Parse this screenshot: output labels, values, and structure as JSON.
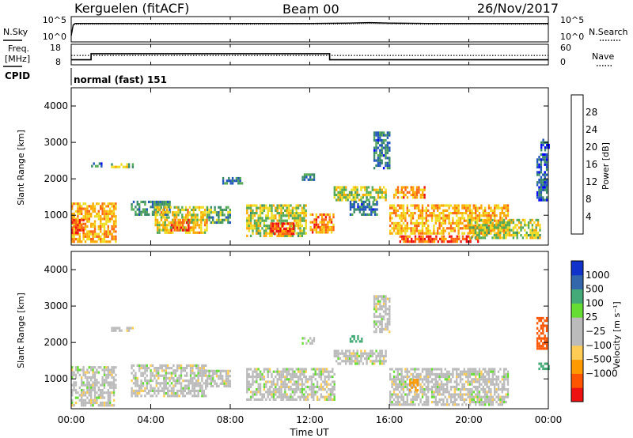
{
  "header": {
    "station": "Kerguelen (fitACF)",
    "beam": "Beam 00",
    "date": "26/Nov/2017"
  },
  "noise_panel": {
    "left_label": "N.Sky",
    "right_label": "N.Search",
    "left_ticks": [
      "10^5",
      "10^0"
    ],
    "right_ticks": [
      "10^5",
      "10^0"
    ]
  },
  "freq_panel": {
    "left_label_line1": "Freq.",
    "left_label_line2": "[MHz]",
    "right_label": "Nave",
    "left_ticks": [
      "18",
      "8"
    ],
    "right_ticks": [
      "60",
      "0"
    ]
  },
  "cpid_panel": {
    "label": "CPID",
    "program": "normal (fast) 151"
  },
  "power_panel": {
    "ylabel": "Slant Range [km]",
    "yticks": [
      "4000",
      "3000",
      "2000",
      "1000"
    ],
    "colorbar_title": "Power [dB]",
    "colorbar_ticks": [
      "28",
      "24",
      "20",
      "16",
      "12",
      "8",
      "4"
    ]
  },
  "velocity_panel": {
    "ylabel": "Slant Range [km]",
    "yticks": [
      "4000",
      "3000",
      "2000",
      "1000"
    ],
    "colorbar_title": "Velocity [m s⁻¹]",
    "colorbar_ticks": [
      "1000",
      "500",
      "100",
      "25",
      "−25",
      "−100",
      "−500",
      "−1000"
    ]
  },
  "time_axis": {
    "title": "Time UT",
    "ticks": [
      "00:00",
      "04:00",
      "08:00",
      "12:00",
      "16:00",
      "20:00",
      "00:00"
    ]
  },
  "colors": {
    "power_scale": [
      "#0000ff",
      "#2255bb",
      "#3a8a6a",
      "#55aa55",
      "#eedd22",
      "#ffaa00",
      "#ff6611",
      "#ee1111"
    ],
    "velocity_scale": [
      "#ee1111",
      "#ff5500",
      "#ff9900",
      "#ffcc55",
      "#bbbbbb",
      "#bbbbbb",
      "#66dd33",
      "#44aa77",
      "#3366aa",
      "#1133cc"
    ],
    "gray": "#bbbbbb"
  },
  "chart_data": [
    {
      "type": "line",
      "panel": "noise",
      "x": [
        0,
        0.1,
        0.2,
        1,
        2,
        4,
        6,
        8,
        10,
        12,
        14,
        15,
        16,
        18,
        20,
        22,
        24
      ],
      "series": [
        {
          "name": "N.Sky",
          "values": [
            1,
            3.5,
            3.8,
            3.8,
            3.8,
            3.8,
            3.8,
            3.8,
            3.8,
            3.8,
            3.9,
            4.0,
            3.9,
            3.8,
            3.8,
            3.8,
            3.8
          ]
        },
        {
          "name": "N.Search",
          "values": [
            1,
            3.4,
            3.6,
            3.6,
            3.6,
            3.6,
            3.6,
            3.6,
            3.6,
            3.6,
            3.7,
            3.8,
            3.7,
            3.6,
            3.6,
            3.6,
            3.6
          ]
        }
      ],
      "ylim": [
        0,
        5
      ],
      "xlim": [
        0,
        24
      ]
    },
    {
      "type": "line",
      "panel": "frequency",
      "x": [
        0,
        1,
        1,
        13,
        13,
        24
      ],
      "series": [
        {
          "name": "Freq.",
          "values": [
            10,
            10,
            13.5,
            13.5,
            10,
            10
          ]
        },
        {
          "name": "Nave",
          "values": [
            27,
            27,
            27,
            27,
            27,
            27
          ]
        }
      ],
      "ylim": [
        8,
        18
      ],
      "xlim": [
        0,
        24
      ]
    },
    {
      "type": "heatmap",
      "panel": "power",
      "ylabel": "Slant Range [km]",
      "xlabel": "Time UT",
      "xlim": [
        0,
        24
      ],
      "ylim": [
        180,
        4500
      ],
      "colorbar_range": [
        0,
        30
      ],
      "regions": [
        {
          "t0": 0.0,
          "t1": 2.2,
          "r0": 300,
          "r1": 1350,
          "level": 20
        },
        {
          "t0": 0.0,
          "t1": 0.6,
          "r0": 500,
          "r1": 900,
          "level": 27
        },
        {
          "t0": 1.0,
          "t1": 1.6,
          "r0": 2350,
          "r1": 2450,
          "level": 8
        },
        {
          "t0": 2.0,
          "t1": 3.2,
          "r0": 2300,
          "r1": 2430,
          "level": 15
        },
        {
          "t0": 3.0,
          "t1": 5.0,
          "r0": 1000,
          "r1": 1400,
          "level": 10
        },
        {
          "t0": 4.2,
          "t1": 6.8,
          "r0": 500,
          "r1": 1250,
          "level": 18
        },
        {
          "t0": 5.0,
          "t1": 6.0,
          "r0": 600,
          "r1": 900,
          "level": 26
        },
        {
          "t0": 6.8,
          "t1": 8.0,
          "r0": 800,
          "r1": 1250,
          "level": 12
        },
        {
          "t0": 7.6,
          "t1": 8.6,
          "r0": 1850,
          "r1": 2050,
          "level": 9
        },
        {
          "t0": 8.8,
          "t1": 11.8,
          "r0": 450,
          "r1": 1300,
          "level": 16
        },
        {
          "t0": 10.0,
          "t1": 11.2,
          "r0": 500,
          "r1": 800,
          "level": 26
        },
        {
          "t0": 11.6,
          "t1": 12.2,
          "r0": 1950,
          "r1": 2150,
          "level": 10
        },
        {
          "t0": 12.0,
          "t1": 13.2,
          "r0": 500,
          "r1": 1050,
          "level": 22
        },
        {
          "t0": 13.2,
          "t1": 15.8,
          "r0": 1400,
          "r1": 1800,
          "level": 16
        },
        {
          "t0": 14.0,
          "t1": 15.4,
          "r0": 1000,
          "r1": 1400,
          "level": 8
        },
        {
          "t0": 15.2,
          "t1": 16.0,
          "r0": 2300,
          "r1": 3300,
          "level": 8
        },
        {
          "t0": 16.2,
          "t1": 17.8,
          "r0": 1500,
          "r1": 1800,
          "level": 22
        },
        {
          "t0": 16.0,
          "t1": 22.0,
          "r0": 500,
          "r1": 1300,
          "level": 20
        },
        {
          "t0": 16.5,
          "t1": 20.5,
          "r0": 250,
          "r1": 450,
          "level": 26
        },
        {
          "t0": 20.0,
          "t1": 23.6,
          "r0": 350,
          "r1": 900,
          "level": 16
        },
        {
          "t0": 23.4,
          "t1": 23.9,
          "r0": 1400,
          "r1": 2700,
          "level": 6
        },
        {
          "t0": 23.6,
          "t1": 24.0,
          "r0": 2800,
          "r1": 3100,
          "level": 5
        }
      ]
    },
    {
      "type": "heatmap",
      "panel": "velocity",
      "ylabel": "Slant Range [km]",
      "xlabel": "Time UT",
      "xlim": [
        0,
        24
      ],
      "ylim": [
        180,
        4500
      ],
      "colorbar_range": [
        -1000,
        1000
      ],
      "regions": [
        {
          "t0": 0.0,
          "t1": 2.2,
          "r0": 300,
          "r1": 1350,
          "velocity": 0
        },
        {
          "t0": 2.0,
          "t1": 3.2,
          "r0": 2300,
          "r1": 2430,
          "velocity": 0
        },
        {
          "t0": 3.0,
          "t1": 6.8,
          "r0": 500,
          "r1": 1400,
          "velocity": 0
        },
        {
          "t0": 6.8,
          "t1": 8.0,
          "r0": 800,
          "r1": 1250,
          "velocity": 0
        },
        {
          "t0": 8.8,
          "t1": 13.2,
          "r0": 450,
          "r1": 1300,
          "velocity": 0
        },
        {
          "t0": 11.6,
          "t1": 12.2,
          "r0": 1950,
          "r1": 2150,
          "velocity": 0
        },
        {
          "t0": 13.2,
          "t1": 15.8,
          "r0": 1400,
          "r1": 1800,
          "velocity": 0
        },
        {
          "t0": 15.2,
          "t1": 16.0,
          "r0": 2300,
          "r1": 3300,
          "velocity": 0
        },
        {
          "t0": 14.0,
          "t1": 14.6,
          "r0": 2050,
          "r1": 2200,
          "velocity": 150
        },
        {
          "t0": 16.0,
          "t1": 22.0,
          "r0": 300,
          "r1": 1300,
          "velocity": 0
        },
        {
          "t0": 17.0,
          "t1": 17.4,
          "r0": 700,
          "r1": 1000,
          "velocity": -200
        },
        {
          "t0": 23.4,
          "t1": 23.9,
          "r0": 1800,
          "r1": 2700,
          "velocity": -600
        },
        {
          "t0": 23.5,
          "t1": 24.0,
          "r0": 1300,
          "r1": 1450,
          "velocity": 150
        }
      ]
    }
  ]
}
